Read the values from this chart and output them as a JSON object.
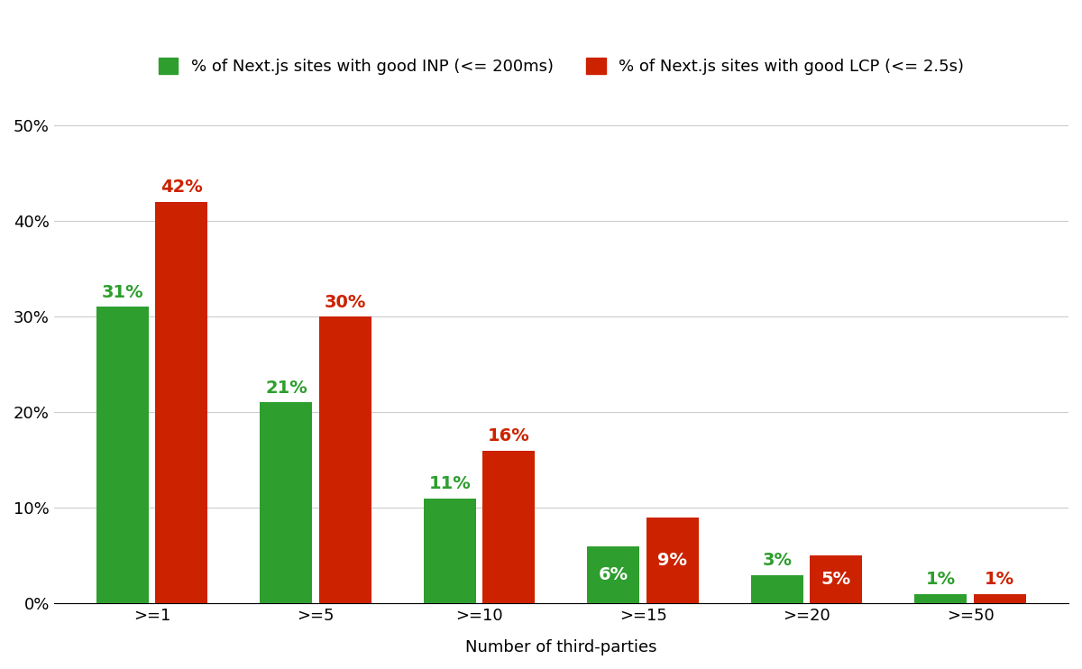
{
  "categories": [
    ">=1",
    ">=5",
    ">=10",
    ">=15",
    ">=20",
    ">=50"
  ],
  "inp_values": [
    31,
    21,
    11,
    6,
    3,
    1
  ],
  "lcp_values": [
    42,
    30,
    16,
    9,
    5,
    1
  ],
  "inp_color": "#2e9e2e",
  "lcp_color": "#cc2200",
  "inp_label": "% of Next.js sites with good INP (<= 200ms)",
  "lcp_label": "% of Next.js sites with good LCP (<= 2.5s)",
  "xlabel": "Number of third-parties",
  "ylim": [
    0,
    52
  ],
  "yticks": [
    0,
    10,
    20,
    30,
    40,
    50
  ],
  "ytick_labels": [
    "0%",
    "10%",
    "20%",
    "30%",
    "40%",
    "50%"
  ],
  "background_color": "#ffffff",
  "grid_color": "#cccccc",
  "axis_fontsize": 13,
  "tick_fontsize": 13,
  "legend_fontsize": 13,
  "bar_label_fontsize": 14,
  "bar_width": 0.32,
  "bar_gap": 0.04,
  "inp_label_style": [
    "above_green",
    "above_green",
    "above_green",
    "inside_white",
    "above_green",
    "above_green"
  ],
  "lcp_label_style": [
    "above_red",
    "above_red",
    "above_red",
    "inside_white",
    "inside_white",
    "above_red"
  ]
}
